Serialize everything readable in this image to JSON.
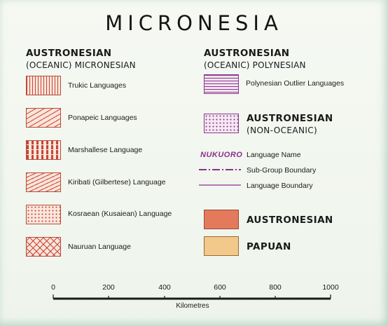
{
  "title": "MICRONESIA",
  "micronesian_group": {
    "heading_line1": "AUSTRONESIAN",
    "heading_line2": "(OCEANIC) MICRONESIAN",
    "items": [
      {
        "label": "Trukic Languages",
        "pattern": "vertical-lines"
      },
      {
        "label": "Ponapeic Languages",
        "pattern": "diagonal-lines"
      },
      {
        "label": "Marshallese Language",
        "pattern": "dashes"
      },
      {
        "label": "Kiribati (Gilbertese) Language",
        "pattern": "diagonal-lines-dense"
      },
      {
        "label": "Kosraean (Kusaiean) Language",
        "pattern": "dots"
      },
      {
        "label": "Nauruan Language",
        "pattern": "crosshatch"
      }
    ]
  },
  "polynesian_group": {
    "heading_line1": "AUSTRONESIAN",
    "heading_line2": "(OCEANIC) POLYNESIAN",
    "items": [
      {
        "label": "Polynesian Outlier Languages",
        "pattern": "horizontal-lines"
      }
    ]
  },
  "non_oceanic": {
    "line1": "AUSTRONESIAN",
    "line2": "(NON-OCEANIC)"
  },
  "line_keys": {
    "language_name_sample": "NUKUORO",
    "language_name_label": "Language Name",
    "subgroup_boundary_label": "Sub-Group Boundary",
    "language_boundary_label": "Language Boundary"
  },
  "solid_keys": [
    {
      "label": "AUSTRONESIAN",
      "color": "#e37a5c"
    },
    {
      "label": "PAPUAN",
      "color": "#f2c98a"
    }
  ],
  "scale_bar": {
    "ticks": [
      "0",
      "200",
      "400",
      "600",
      "800",
      "1000"
    ],
    "unit": "Kilometres"
  },
  "colors": {
    "pattern_red": "#c2463a",
    "pattern_purple": "#8a3b8c",
    "language_name_purple": "#8a2f8e"
  }
}
